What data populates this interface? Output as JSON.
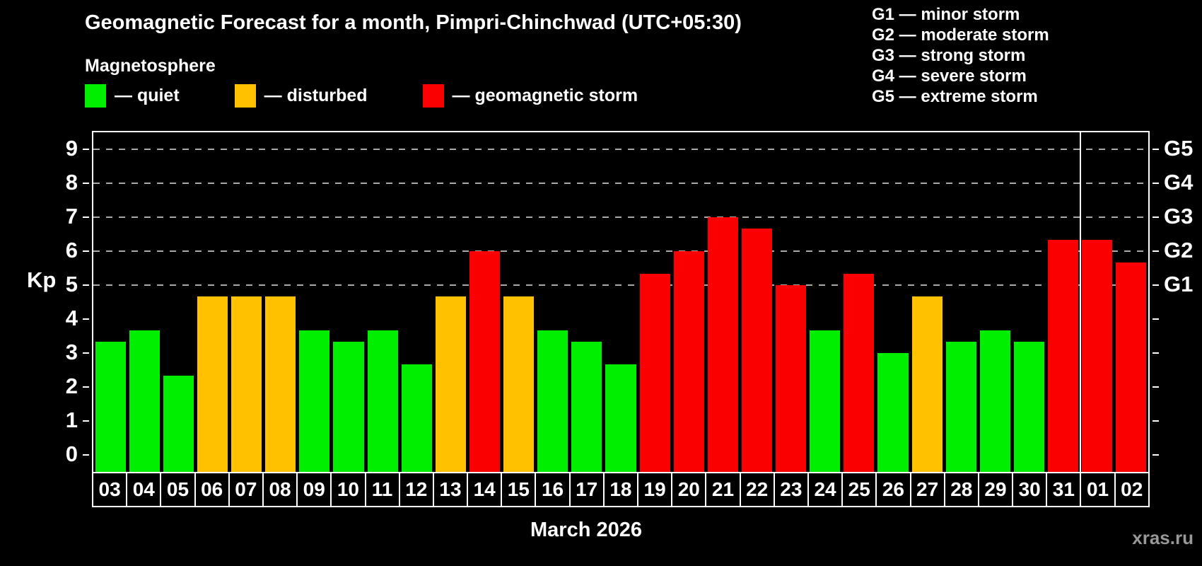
{
  "subtitle": "Magnetosphere",
  "legend": {
    "items": [
      {
        "key": "quiet",
        "label": "— quiet",
        "color": "#00EE00"
      },
      {
        "key": "disturbed",
        "label": "— disturbed",
        "color": "#FFC100"
      },
      {
        "key": "storm",
        "label": "— geomagnetic storm",
        "color": "#FB0000"
      }
    ]
  },
  "g_legend": [
    "G1 — minor storm",
    "G2 — moderate storm",
    "G3 — strong storm",
    "G4 — severe storm",
    "G5 — extreme storm"
  ],
  "watermark": "xras.ru",
  "colors": {
    "background": "#000000",
    "text": "#ffffff",
    "quiet": "#00EE00",
    "disturbed": "#FFC100",
    "storm": "#FB0000",
    "gridline": "#a9a9a9",
    "axis": "#ffffff",
    "watermark": "#989898"
  },
  "chart_data": {
    "type": "bar",
    "title": "Geomagnetic Forecast for a month, Pimpri-Chinchwad (UTC+05:30)",
    "xlabel": "March 2026",
    "ylabel": "Kp",
    "categories": [
      "03",
      "04",
      "05",
      "06",
      "07",
      "08",
      "09",
      "10",
      "11",
      "12",
      "13",
      "14",
      "15",
      "16",
      "17",
      "18",
      "19",
      "20",
      "21",
      "22",
      "23",
      "24",
      "25",
      "26",
      "27",
      "28",
      "29",
      "30",
      "31",
      "01",
      "02"
    ],
    "values": [
      3.33,
      3.67,
      2.33,
      4.67,
      4.67,
      4.67,
      3.67,
      3.33,
      3.67,
      2.67,
      4.67,
      6.0,
      4.67,
      3.67,
      3.33,
      2.67,
      5.33,
      6.0,
      7.0,
      6.67,
      5.0,
      3.67,
      5.33,
      3.0,
      4.67,
      3.33,
      3.67,
      3.33,
      6.33,
      6.33,
      5.67
    ],
    "statuses": [
      "quiet",
      "quiet",
      "quiet",
      "disturbed",
      "disturbed",
      "disturbed",
      "quiet",
      "quiet",
      "quiet",
      "quiet",
      "disturbed",
      "storm",
      "disturbed",
      "quiet",
      "quiet",
      "quiet",
      "storm",
      "storm",
      "storm",
      "storm",
      "storm",
      "quiet",
      "storm",
      "quiet",
      "disturbed",
      "quiet",
      "quiet",
      "quiet",
      "storm",
      "storm",
      "storm"
    ],
    "ylim": [
      -0.5,
      9.5
    ],
    "y_ticks": [
      0,
      1,
      2,
      3,
      4,
      5,
      6,
      7,
      8,
      9
    ],
    "gridlines_at": [
      5,
      6,
      7,
      8,
      9
    ],
    "grid": "dashed-horizontal",
    "g_ticks": [
      {
        "label": "G1",
        "value": 5
      },
      {
        "label": "G2",
        "value": 6
      },
      {
        "label": "G3",
        "value": 7
      },
      {
        "label": "G4",
        "value": 8
      },
      {
        "label": "G5",
        "value": 9
      }
    ],
    "month_separator_after_index": 28,
    "legend_position": "top-left"
  }
}
